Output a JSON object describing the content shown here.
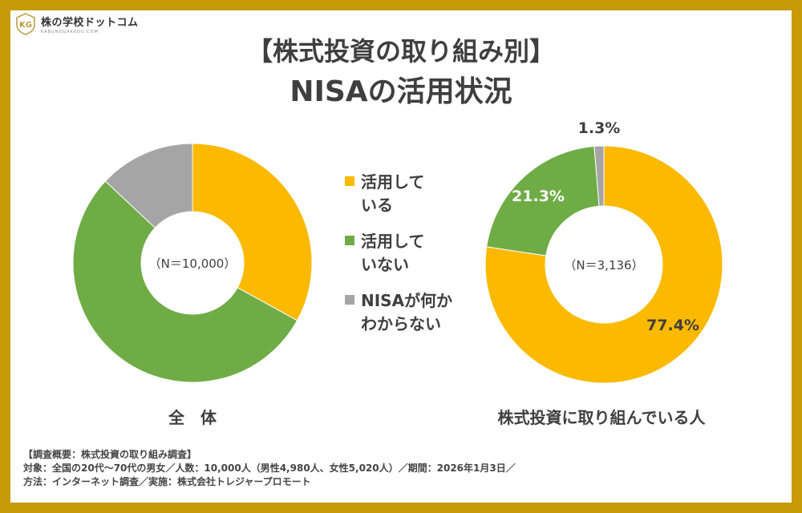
{
  "brand": {
    "name": "株の学校ドットコム",
    "sub": "KABUNOGAKKOU.COM"
  },
  "title": {
    "line1": "【株式投資の取り組み別】",
    "line2": "NISAの活用状況"
  },
  "colors": {
    "using": "#fbb900",
    "not_using": "#6fac46",
    "unknown": "#a5a5a5",
    "frame": "#c79a08"
  },
  "legend": [
    {
      "label": "活用して\nいる",
      "color": "#fbb900"
    },
    {
      "label": "活用して\nいない",
      "color": "#6fac46"
    },
    {
      "label": "NISAが何か\nわからない",
      "color": "#a5a5a5"
    }
  ],
  "chart_data": [
    {
      "type": "pie",
      "center_label": "（N＝10,000）",
      "caption": "全　体",
      "slices": [
        {
          "name": "活用している",
          "value": 33.0,
          "color": "#fbb900"
        },
        {
          "name": "活用していない",
          "value": 54.0,
          "color": "#6fac46"
        },
        {
          "name": "NISAが何かわからない",
          "value": 13.0,
          "color": "#a5a5a5"
        }
      ]
    },
    {
      "type": "pie",
      "center_label": "（N＝3,136）",
      "caption": "株式投資に取り組んでいる人",
      "slices": [
        {
          "name": "活用している",
          "value": 77.4,
          "label": "77.4%",
          "color": "#fbb900"
        },
        {
          "name": "活用していない",
          "value": 21.3,
          "label": "21.3%",
          "color": "#6fac46"
        },
        {
          "name": "NISAが何かわからない",
          "value": 1.3,
          "label": "1.3%",
          "color": "#a5a5a5"
        }
      ]
    }
  ],
  "footnote": [
    "【調査概要：株式投資の取り組み調査】",
    "対象：全国の20代〜70代の男女／人数：10,000人（男性4,980人、女性5,020人）／期間：2026年1月3日／",
    "方法：インターネット調査／実施：株式会社トレジャープロモート"
  ]
}
